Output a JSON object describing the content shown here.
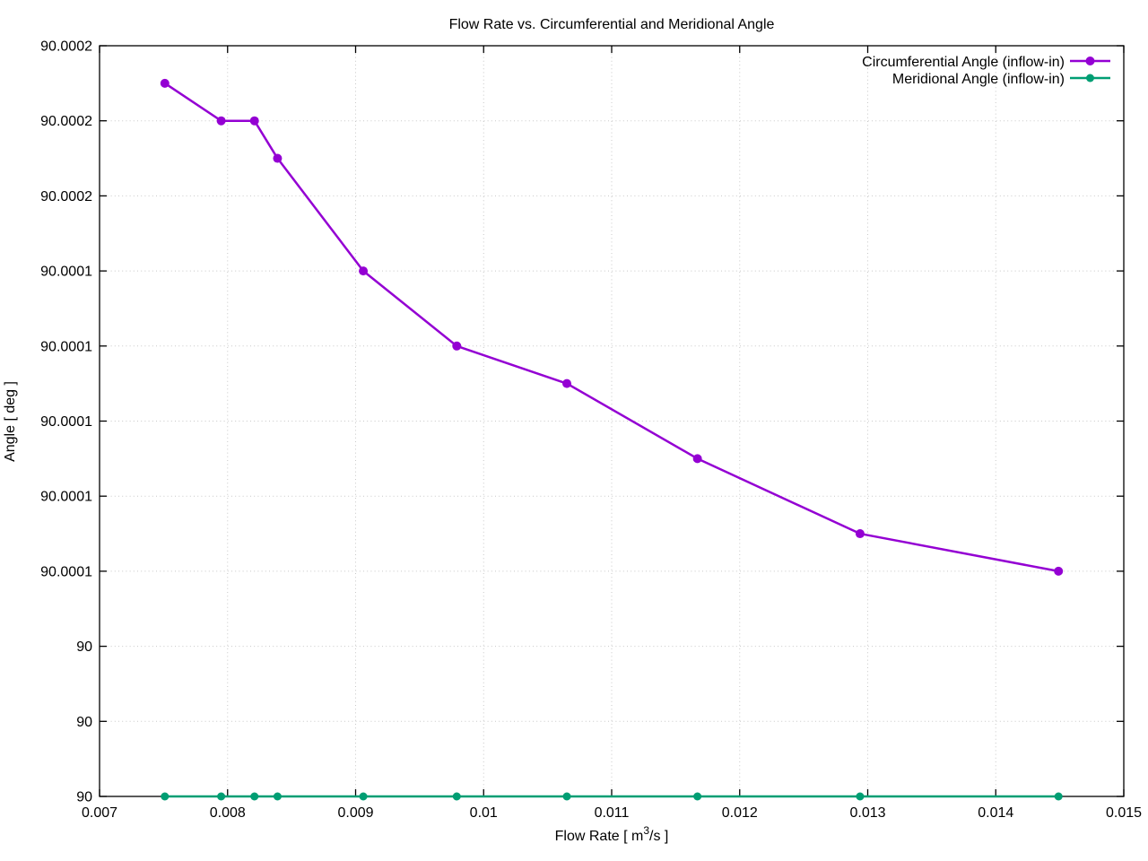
{
  "chart_data": {
    "type": "line",
    "title": "Flow Rate vs. Circumferential and Meridional Angle",
    "xlabel": "Flow Rate [ m³/s ]",
    "ylabel": "Angle [ deg ]",
    "xlim": [
      0.007,
      0.015
    ],
    "ylim": [
      90.0,
      90.0002
    ],
    "grid": "dotted-gray",
    "grid_color": "#c8c8c8",
    "legend_position": "top-right-inside",
    "x_ticks": [
      {
        "value": 0.007,
        "label": "0.007"
      },
      {
        "value": 0.008,
        "label": "0.008"
      },
      {
        "value": 0.009,
        "label": "0.009"
      },
      {
        "value": 0.01,
        "label": "0.01"
      },
      {
        "value": 0.011,
        "label": "0.011"
      },
      {
        "value": 0.012,
        "label": "0.012"
      },
      {
        "value": 0.013,
        "label": "0.013"
      },
      {
        "value": 0.014,
        "label": "0.014"
      },
      {
        "value": 0.015,
        "label": "0.015"
      }
    ],
    "y_ticks": [
      {
        "value": 90.0,
        "label": "90"
      },
      {
        "value": 90.00002,
        "label": "90"
      },
      {
        "value": 90.00004,
        "label": "90"
      },
      {
        "value": 90.00006,
        "label": "90.0001"
      },
      {
        "value": 90.00008,
        "label": "90.0001"
      },
      {
        "value": 90.0001,
        "label": "90.0001"
      },
      {
        "value": 90.00012,
        "label": "90.0001"
      },
      {
        "value": 90.00014,
        "label": "90.0001"
      },
      {
        "value": 90.00016,
        "label": "90.0002"
      },
      {
        "value": 90.00018,
        "label": "90.0002"
      },
      {
        "value": 90.0002,
        "label": "90.0002"
      }
    ],
    "x": [
      0.00751,
      0.00795,
      0.00821,
      0.00839,
      0.00906,
      0.00979,
      0.01065,
      0.01167,
      0.01294,
      0.01449
    ],
    "series": [
      {
        "name": "Circumferential Angle (inflow-in)",
        "color": "#9400D3",
        "marker": "filled-circle",
        "values": [
          90.00019,
          90.00018,
          90.00018,
          90.00017,
          90.00014,
          90.00012,
          90.00011,
          90.00009,
          90.00007,
          90.00006
        ]
      },
      {
        "name": "Meridional Angle (inflow-in)",
        "color": "#009E73",
        "marker": "filled-circle",
        "values": [
          90.0,
          90.0,
          90.0,
          90.0,
          90.0,
          90.0,
          90.0,
          90.0,
          90.0,
          90.0
        ]
      }
    ]
  }
}
